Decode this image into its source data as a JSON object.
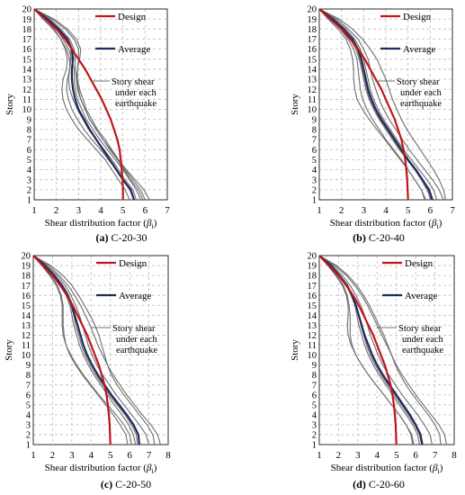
{
  "colors": {
    "design": "#c0161b",
    "average": "#1f2a5c",
    "each": "#6f6f6f",
    "grid": "#bdbdbd"
  },
  "legend_labels": {
    "design": "Design",
    "average": "Average",
    "each_line1": "Story shear",
    "each_line2": "under each",
    "each_line3": "earthquake"
  },
  "chart_data": [
    {
      "type": "line",
      "caption_label": "(a)",
      "caption_text": "C-20-30",
      "xlabel": "Shear distribution factor (",
      "xlabel_symbol": "β",
      "xlabel_sub": "i",
      "xlabel_end": ")",
      "ylabel": "Story",
      "xlim": [
        1,
        7
      ],
      "xticks": [
        1,
        2,
        3,
        4,
        5,
        6,
        7
      ],
      "ylim": [
        1,
        20
      ],
      "yticks": [
        1,
        2,
        3,
        4,
        5,
        6,
        7,
        8,
        9,
        10,
        11,
        12,
        13,
        14,
        15,
        16,
        17,
        18,
        19,
        20
      ],
      "grid": true,
      "legend": "top-right",
      "stories": [
        20,
        19,
        18,
        17,
        16,
        15,
        14,
        13,
        12,
        11,
        10,
        9,
        8,
        7,
        6,
        5,
        4,
        3,
        2,
        1
      ],
      "series": [
        {
          "role": "design",
          "values": [
            1.0,
            1.5,
            2.0,
            2.4,
            2.7,
            3.0,
            3.3,
            3.55,
            3.8,
            4.05,
            4.25,
            4.45,
            4.6,
            4.75,
            4.85,
            4.9,
            4.95,
            4.98,
            5.0,
            5.0
          ]
        },
        {
          "role": "average",
          "values": [
            1.0,
            1.6,
            2.1,
            2.5,
            2.7,
            2.75,
            2.7,
            2.7,
            2.75,
            2.85,
            3.0,
            3.25,
            3.5,
            3.8,
            4.1,
            4.4,
            4.7,
            5.0,
            5.35,
            5.5
          ]
        },
        {
          "role": "each",
          "values": [
            1.0,
            1.8,
            2.4,
            2.8,
            3.0,
            3.0,
            2.95,
            2.95,
            3.05,
            3.2,
            3.35,
            3.6,
            3.85,
            4.2,
            4.5,
            4.8,
            5.1,
            5.45,
            5.8,
            6.0
          ]
        },
        {
          "role": "each",
          "values": [
            1.0,
            1.5,
            1.9,
            2.2,
            2.4,
            2.5,
            2.45,
            2.3,
            2.25,
            2.3,
            2.45,
            2.7,
            3.0,
            3.4,
            3.8,
            4.2,
            4.5,
            4.8,
            5.1,
            5.3
          ]
        },
        {
          "role": "each",
          "values": [
            1.0,
            1.7,
            2.2,
            2.6,
            2.8,
            2.85,
            2.85,
            2.9,
            3.0,
            3.1,
            3.3,
            3.5,
            3.8,
            4.1,
            4.4,
            4.75,
            5.05,
            5.35,
            5.7,
            5.9
          ]
        },
        {
          "role": "each",
          "values": [
            1.0,
            1.4,
            1.85,
            2.2,
            2.45,
            2.6,
            2.6,
            2.5,
            2.45,
            2.55,
            2.7,
            2.95,
            3.25,
            3.6,
            4.0,
            4.35,
            4.7,
            5.0,
            5.3,
            5.5
          ]
        },
        {
          "role": "each",
          "values": [
            1.0,
            1.9,
            2.5,
            2.9,
            3.1,
            3.05,
            2.95,
            2.9,
            2.95,
            3.1,
            3.3,
            3.5,
            3.8,
            4.1,
            4.45,
            4.8,
            5.15,
            5.55,
            5.95,
            6.2
          ]
        },
        {
          "role": "each",
          "values": [
            1.0,
            1.6,
            2.0,
            2.3,
            2.55,
            2.7,
            2.8,
            2.8,
            2.85,
            2.95,
            3.15,
            3.35,
            3.65,
            3.95,
            4.3,
            4.65,
            5.0,
            5.3,
            5.6,
            5.8
          ]
        },
        {
          "role": "each",
          "values": [
            1.0,
            1.55,
            2.05,
            2.5,
            2.65,
            2.65,
            2.6,
            2.55,
            2.6,
            2.75,
            2.95,
            3.2,
            3.45,
            3.8,
            4.15,
            4.5,
            4.8,
            5.1,
            5.45,
            5.6
          ]
        }
      ]
    },
    {
      "type": "line",
      "caption_label": "(b)",
      "caption_text": "C-20-40",
      "xlabel": "Shear distribution factor (",
      "xlabel_symbol": "β",
      "xlabel_sub": "i",
      "xlabel_end": ")",
      "ylabel": "Story",
      "xlim": [
        1,
        7
      ],
      "xticks": [
        1,
        2,
        3,
        4,
        5,
        6,
        7
      ],
      "ylim": [
        1,
        20
      ],
      "yticks": [
        1,
        2,
        3,
        4,
        5,
        6,
        7,
        8,
        9,
        10,
        11,
        12,
        13,
        14,
        15,
        16,
        17,
        18,
        19,
        20
      ],
      "grid": true,
      "legend": "top-right",
      "stories": [
        20,
        19,
        18,
        17,
        16,
        15,
        14,
        13,
        12,
        11,
        10,
        9,
        8,
        7,
        6,
        5,
        4,
        3,
        2,
        1
      ],
      "series": [
        {
          "role": "design",
          "values": [
            1.0,
            1.5,
            2.0,
            2.4,
            2.75,
            3.05,
            3.3,
            3.55,
            3.8,
            4.0,
            4.2,
            4.4,
            4.55,
            4.7,
            4.8,
            4.87,
            4.92,
            4.96,
            4.98,
            5.0
          ]
        },
        {
          "role": "average",
          "values": [
            1.0,
            1.6,
            2.1,
            2.5,
            2.75,
            2.9,
            3.0,
            3.1,
            3.2,
            3.35,
            3.55,
            3.8,
            4.1,
            4.4,
            4.7,
            5.0,
            5.35,
            5.65,
            5.95,
            6.1
          ]
        },
        {
          "role": "each",
          "values": [
            1.0,
            1.8,
            2.3,
            2.75,
            3.0,
            3.2,
            3.3,
            3.4,
            3.55,
            3.7,
            3.9,
            4.15,
            4.45,
            4.75,
            5.05,
            5.4,
            5.75,
            6.1,
            6.4,
            6.6
          ]
        },
        {
          "role": "each",
          "values": [
            1.0,
            1.5,
            1.95,
            2.3,
            2.55,
            2.7,
            2.75,
            2.8,
            2.85,
            2.95,
            3.15,
            3.4,
            3.7,
            4.0,
            4.35,
            4.7,
            5.0,
            5.3,
            5.6,
            5.8
          ]
        },
        {
          "role": "each",
          "values": [
            1.0,
            1.7,
            2.2,
            2.6,
            2.85,
            3.0,
            3.1,
            3.2,
            3.3,
            3.45,
            3.65,
            3.9,
            4.2,
            4.5,
            4.8,
            5.15,
            5.5,
            5.85,
            6.15,
            6.3
          ]
        },
        {
          "role": "each",
          "values": [
            1.0,
            1.4,
            1.85,
            2.2,
            2.4,
            2.5,
            2.55,
            2.55,
            2.6,
            2.7,
            2.95,
            3.25,
            3.6,
            3.95,
            4.3,
            4.65,
            5.0,
            5.3,
            5.6,
            5.75
          ]
        },
        {
          "role": "each",
          "values": [
            1.0,
            1.9,
            2.5,
            2.95,
            3.3,
            3.6,
            3.8,
            4.0,
            4.15,
            4.3,
            4.5,
            4.7,
            4.95,
            5.25,
            5.55,
            5.85,
            6.15,
            6.4,
            6.6,
            6.7
          ]
        },
        {
          "role": "each",
          "values": [
            1.0,
            1.6,
            2.05,
            2.4,
            2.65,
            2.8,
            2.9,
            3.0,
            3.1,
            3.25,
            3.45,
            3.7,
            4.0,
            4.3,
            4.6,
            4.95,
            5.3,
            5.6,
            5.9,
            6.0
          ]
        },
        {
          "role": "each",
          "values": [
            1.0,
            1.55,
            2.0,
            2.45,
            2.7,
            2.85,
            2.95,
            3.05,
            3.15,
            3.3,
            3.5,
            3.75,
            4.05,
            4.35,
            4.65,
            5.0,
            5.3,
            5.6,
            5.85,
            6.05
          ]
        }
      ]
    },
    {
      "type": "line",
      "caption_label": "(c)",
      "caption_text": "C-20-50",
      "xlabel": "Shear distribution factor (",
      "xlabel_symbol": "β",
      "xlabel_sub": "i",
      "xlabel_end": ")",
      "ylabel": "Story",
      "xlim": [
        1,
        8
      ],
      "xticks": [
        1,
        2,
        3,
        4,
        5,
        6,
        7,
        8
      ],
      "ylim": [
        1,
        20
      ],
      "yticks": [
        1,
        2,
        3,
        4,
        5,
        6,
        7,
        8,
        9,
        10,
        11,
        12,
        13,
        14,
        15,
        16,
        17,
        18,
        19,
        20
      ],
      "grid": true,
      "legend": "top-right",
      "stories": [
        20,
        19,
        18,
        17,
        16,
        15,
        14,
        13,
        12,
        11,
        10,
        9,
        8,
        7,
        6,
        5,
        4,
        3,
        2,
        1
      ],
      "series": [
        {
          "role": "design",
          "values": [
            1.0,
            1.5,
            2.0,
            2.4,
            2.75,
            3.05,
            3.3,
            3.55,
            3.8,
            4.0,
            4.2,
            4.4,
            4.55,
            4.7,
            4.8,
            4.87,
            4.92,
            4.96,
            4.98,
            5.0
          ]
        },
        {
          "role": "average",
          "values": [
            1.0,
            1.6,
            2.1,
            2.5,
            2.8,
            3.0,
            3.15,
            3.3,
            3.45,
            3.6,
            3.8,
            4.05,
            4.35,
            4.7,
            5.05,
            5.45,
            5.85,
            6.2,
            6.45,
            6.5
          ]
        },
        {
          "role": "each",
          "values": [
            1.0,
            1.8,
            2.35,
            2.8,
            3.15,
            3.45,
            3.7,
            3.95,
            4.15,
            4.35,
            4.6,
            4.85,
            5.15,
            5.5,
            5.85,
            6.25,
            6.65,
            7.1,
            7.45,
            7.6
          ]
        },
        {
          "role": "each",
          "values": [
            1.0,
            1.5,
            1.9,
            2.25,
            2.45,
            2.55,
            2.55,
            2.55,
            2.6,
            2.7,
            2.9,
            3.2,
            3.55,
            3.95,
            4.35,
            4.75,
            5.15,
            5.5,
            5.8,
            5.9
          ]
        },
        {
          "role": "each",
          "values": [
            1.0,
            1.7,
            2.25,
            2.65,
            2.95,
            3.2,
            3.4,
            3.55,
            3.7,
            3.85,
            4.05,
            4.3,
            4.6,
            4.95,
            5.3,
            5.7,
            6.1,
            6.5,
            6.85,
            7.0
          ]
        },
        {
          "role": "each",
          "values": [
            1.0,
            1.45,
            1.85,
            2.2,
            2.4,
            2.5,
            2.5,
            2.5,
            2.55,
            2.7,
            2.95,
            3.25,
            3.6,
            4.0,
            4.4,
            4.85,
            5.3,
            5.7,
            6.0,
            6.1
          ]
        },
        {
          "role": "each",
          "values": [
            1.0,
            1.9,
            2.55,
            3.0,
            3.35,
            3.65,
            3.95,
            4.2,
            4.4,
            4.55,
            4.7,
            4.85,
            5.05,
            5.35,
            5.7,
            6.1,
            6.5,
            6.9,
            7.2,
            7.3
          ]
        },
        {
          "role": "each",
          "values": [
            1.0,
            1.6,
            2.05,
            2.45,
            2.75,
            2.95,
            3.1,
            3.2,
            3.35,
            3.5,
            3.7,
            3.95,
            4.25,
            4.6,
            4.95,
            5.35,
            5.75,
            6.1,
            6.35,
            6.4
          ]
        },
        {
          "role": "each",
          "values": [
            1.0,
            1.55,
            2.0,
            2.45,
            2.7,
            2.9,
            3.0,
            3.1,
            3.25,
            3.4,
            3.6,
            3.85,
            4.15,
            4.5,
            4.85,
            5.2,
            5.6,
            5.95,
            6.2,
            6.3
          ]
        }
      ]
    },
    {
      "type": "line",
      "caption_label": "(d)",
      "caption_text": "C-20-60",
      "xlabel": "Shear distribution factor (",
      "xlabel_symbol": "β",
      "xlabel_sub": "i",
      "xlabel_end": ")",
      "ylabel": "Story",
      "xlim": [
        1,
        8
      ],
      "xticks": [
        1,
        2,
        3,
        4,
        5,
        6,
        7,
        8
      ],
      "ylim": [
        1,
        20
      ],
      "yticks": [
        1,
        2,
        3,
        4,
        5,
        6,
        7,
        8,
        9,
        10,
        11,
        12,
        13,
        14,
        15,
        16,
        17,
        18,
        19,
        20
      ],
      "grid": true,
      "legend": "top-right",
      "stories": [
        20,
        19,
        18,
        17,
        16,
        15,
        14,
        13,
        12,
        11,
        10,
        9,
        8,
        7,
        6,
        5,
        4,
        3,
        2,
        1
      ],
      "series": [
        {
          "role": "design",
          "values": [
            1.0,
            1.5,
            2.0,
            2.4,
            2.75,
            3.05,
            3.3,
            3.55,
            3.8,
            4.0,
            4.2,
            4.4,
            4.55,
            4.7,
            4.8,
            4.87,
            4.92,
            4.96,
            4.98,
            5.0
          ]
        },
        {
          "role": "average",
          "values": [
            1.0,
            1.6,
            2.05,
            2.45,
            2.7,
            2.9,
            3.05,
            3.2,
            3.35,
            3.55,
            3.75,
            4.0,
            4.3,
            4.65,
            5.0,
            5.35,
            5.7,
            6.0,
            6.25,
            6.35
          ]
        },
        {
          "role": "each",
          "values": [
            1.0,
            1.8,
            2.4,
            2.85,
            3.2,
            3.5,
            3.75,
            4.0,
            4.25,
            4.5,
            4.75,
            5.0,
            5.3,
            5.65,
            6.0,
            6.4,
            6.8,
            7.2,
            7.5,
            7.6
          ]
        },
        {
          "role": "each",
          "values": [
            1.0,
            1.5,
            1.9,
            2.25,
            2.45,
            2.55,
            2.6,
            2.6,
            2.6,
            2.7,
            2.9,
            3.2,
            3.55,
            3.95,
            4.35,
            4.75,
            5.15,
            5.5,
            5.75,
            5.85
          ]
        },
        {
          "role": "each",
          "values": [
            1.0,
            1.7,
            2.2,
            2.6,
            2.9,
            3.15,
            3.35,
            3.5,
            3.65,
            3.85,
            4.05,
            4.3,
            4.6,
            4.95,
            5.3,
            5.7,
            6.1,
            6.45,
            6.75,
            6.85
          ]
        },
        {
          "role": "each",
          "values": [
            1.0,
            1.45,
            1.85,
            2.2,
            2.4,
            2.5,
            2.5,
            2.45,
            2.5,
            2.65,
            2.9,
            3.2,
            3.55,
            3.95,
            4.35,
            4.75,
            5.15,
            5.5,
            5.8,
            5.9
          ]
        },
        {
          "role": "each",
          "values": [
            1.0,
            1.9,
            2.5,
            2.95,
            3.3,
            3.6,
            3.85,
            4.1,
            4.35,
            4.55,
            4.75,
            4.95,
            5.2,
            5.5,
            5.85,
            6.25,
            6.65,
            7.0,
            7.25,
            7.3
          ]
        },
        {
          "role": "each",
          "values": [
            1.0,
            1.6,
            2.05,
            2.45,
            2.7,
            2.9,
            3.05,
            3.15,
            3.3,
            3.45,
            3.65,
            3.9,
            4.2,
            4.55,
            4.9,
            5.25,
            5.6,
            5.95,
            6.2,
            6.3
          ]
        },
        {
          "role": "each",
          "values": [
            1.0,
            1.55,
            2.0,
            2.4,
            2.65,
            2.85,
            2.95,
            3.05,
            3.2,
            3.35,
            3.55,
            3.8,
            4.1,
            4.45,
            4.8,
            5.15,
            5.5,
            5.85,
            6.1,
            6.2
          ]
        }
      ]
    }
  ]
}
